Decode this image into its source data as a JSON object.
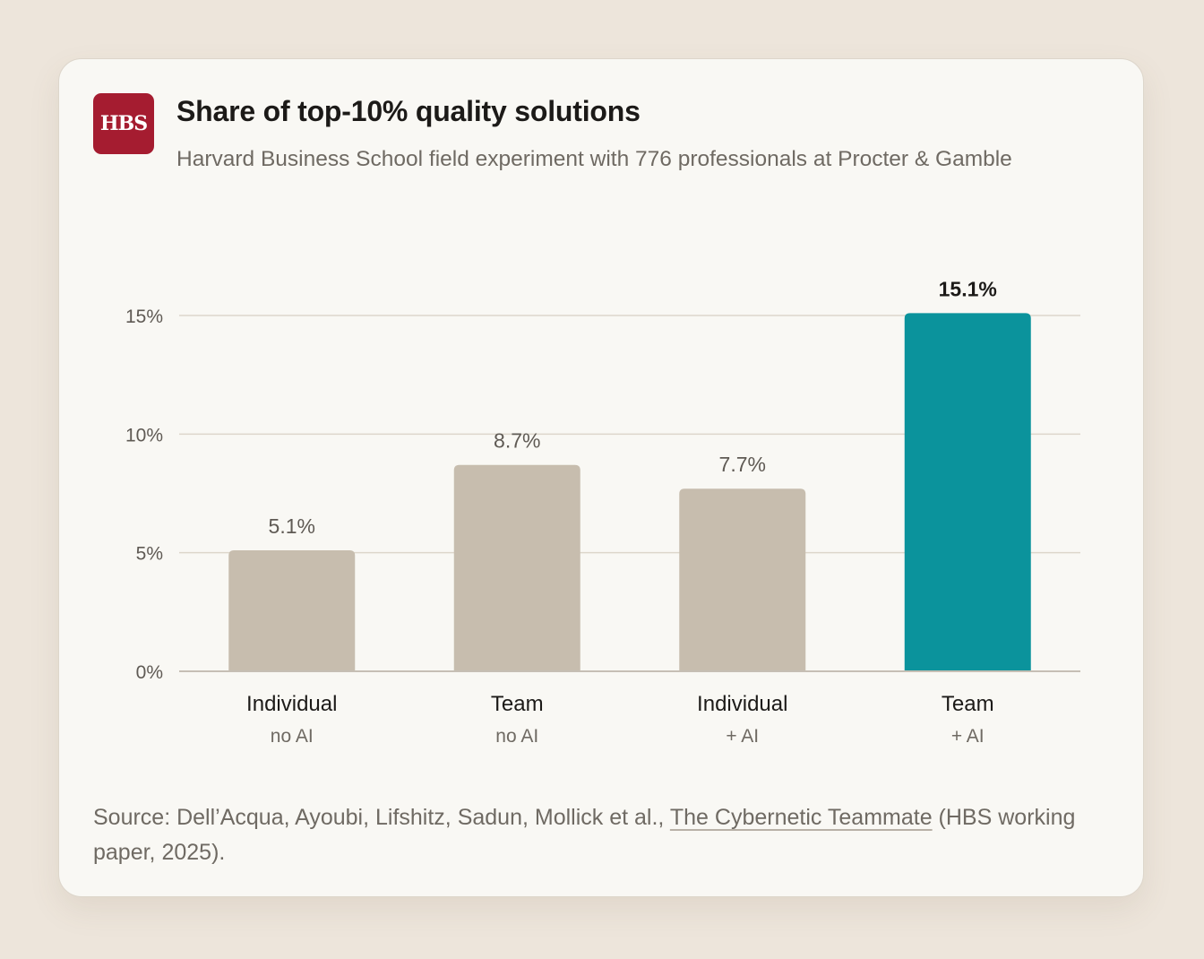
{
  "logo": {
    "text": "HBS",
    "color": "#a51c30"
  },
  "header": {
    "title": "Share of top-10% quality solutions",
    "subtitle": "Harvard Business School field experiment with 776 professionals at Procter & Gamble"
  },
  "chart_data": {
    "type": "bar",
    "title": "Share of top-10% quality solutions",
    "categories": [
      {
        "line1": "Individual",
        "line2": "no AI"
      },
      {
        "line1": "Team",
        "line2": "no AI"
      },
      {
        "line1": "Individual",
        "line2": "+ AI"
      },
      {
        "line1": "Team",
        "line2": "+ AI"
      }
    ],
    "values": [
      5.1,
      8.7,
      7.7,
      15.1
    ],
    "value_labels": [
      "5.1%",
      "8.7%",
      "7.7%",
      "15.1%"
    ],
    "highlight_index": 3,
    "yticks": [
      {
        "value": 0,
        "label": "0%"
      },
      {
        "value": 5,
        "label": "5%"
      },
      {
        "value": 10,
        "label": "10%"
      },
      {
        "value": 15,
        "label": "15%"
      }
    ],
    "ylim": [
      0,
      15
    ],
    "grid": true,
    "colors": {
      "bar": "#c7bdae",
      "highlight": "#0b939c",
      "grid": "#ddd6cb",
      "baseline": "#c6bfb5"
    }
  },
  "source": {
    "prefix": "Source: Dell’Acqua, Ayoubi, Lifshitz, Sadun, Mollick et al., ",
    "link_text": "The Cybernetic Teammate",
    "suffix": " (HBS working paper, 2025)."
  }
}
